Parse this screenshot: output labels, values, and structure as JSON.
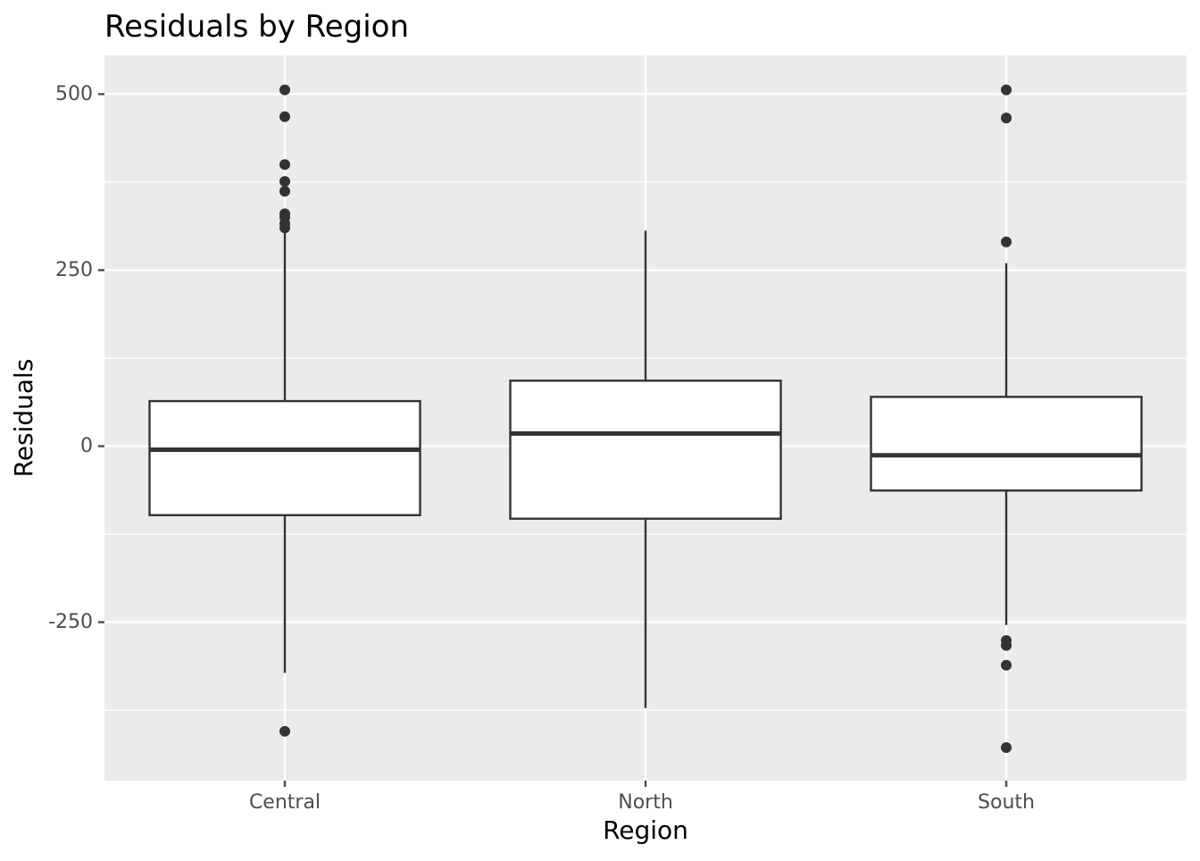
{
  "chart_data": {
    "type": "boxplot",
    "title": "Residuals by Region",
    "xlabel": "Region",
    "ylabel": "Residuals",
    "ylim": [
      -475,
      555
    ],
    "y_ticks": [
      -250,
      0,
      250,
      500
    ],
    "y_tick_labels": [
      "-250",
      "0",
      "250",
      "500"
    ],
    "y_minor_ticks": [
      -375,
      -125,
      125,
      375
    ],
    "categories": [
      "Central",
      "North",
      "South"
    ],
    "grid": true,
    "colors": {
      "panel": "#ebebeb",
      "grid": "#ffffff",
      "box_fill": "#ffffff",
      "box_line": "#333333",
      "tick": "#4d4d4d"
    },
    "boxes": [
      {
        "category": "Central",
        "whisker_low": -322,
        "q1": -98,
        "median": -5,
        "q3": 64,
        "whisker_high": 310,
        "outliers": [
          506,
          468,
          400,
          376,
          362,
          330,
          325,
          316,
          310,
          -405
        ]
      },
      {
        "category": "North",
        "whisker_low": -372,
        "q1": -103,
        "median": 18,
        "q3": 93,
        "whisker_high": 306,
        "outliers": []
      },
      {
        "category": "South",
        "whisker_low": -254,
        "q1": -63,
        "median": -13,
        "q3": 70,
        "whisker_high": 260,
        "outliers": [
          506,
          466,
          290,
          -276,
          -283,
          -311,
          -428
        ]
      }
    ]
  }
}
